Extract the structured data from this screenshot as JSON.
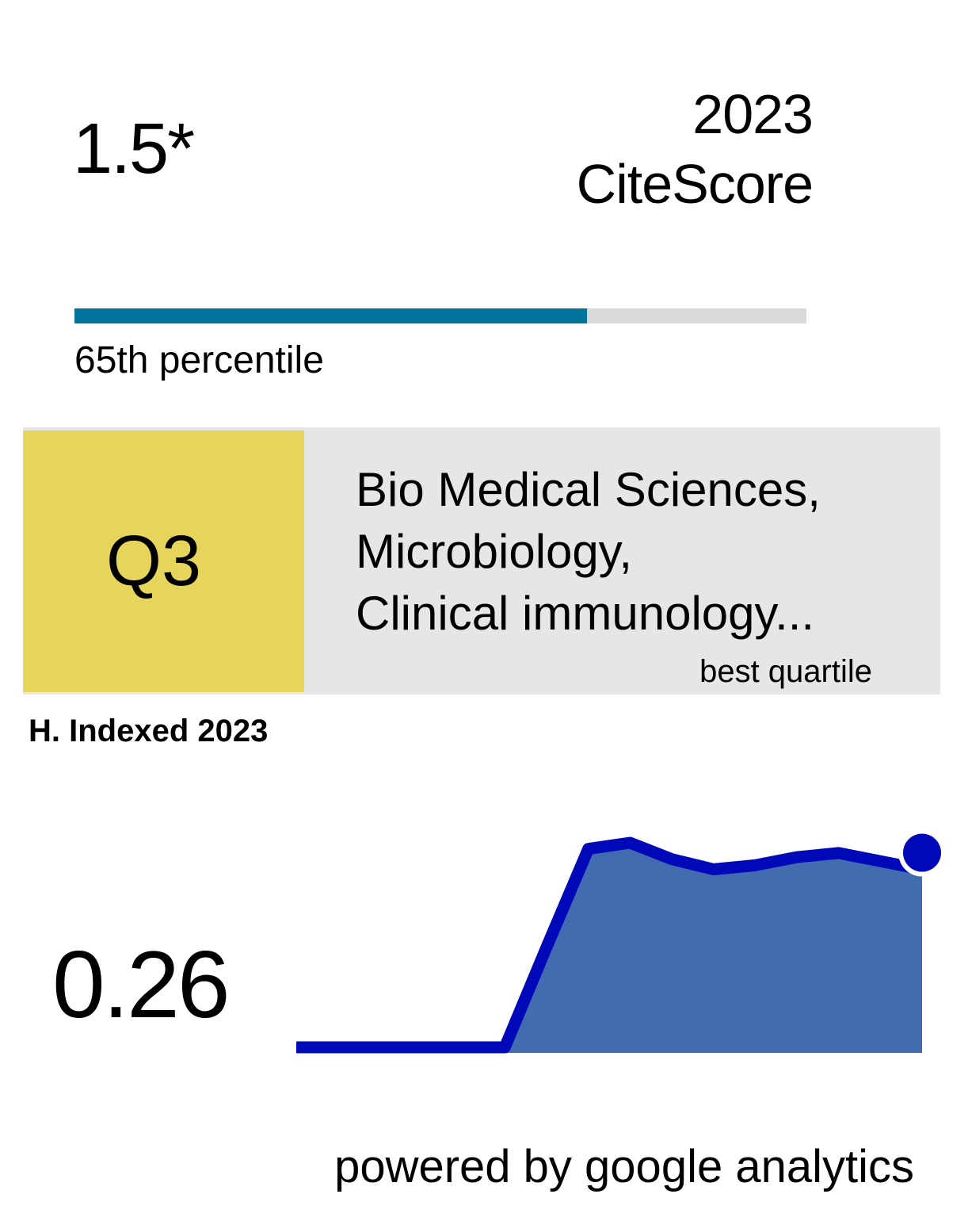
{
  "citescore": {
    "value": "1.5*",
    "year": "2023",
    "label": "CiteScore",
    "percentile_value": 0.7,
    "percentile_text": "65th percentile",
    "colors": {
      "bar_fill": "#00749c",
      "bar_track": "#d9d9d9"
    }
  },
  "quartile": {
    "label": "Q3",
    "categories": [
      "Bio Medical Sciences,",
      "Microbiology,",
      "Clinical immunology..."
    ],
    "note": "best quartile",
    "colors": {
      "box": "#e7d45b",
      "panel": "#e6e6e6"
    }
  },
  "h_index": {
    "label": "H. Indexed 2023",
    "value": "0.26",
    "sparkline": {
      "values": [
        0,
        0,
        0,
        0,
        0,
        0,
        0.49,
        0.97,
        1.0,
        0.92,
        0.87,
        0.89,
        0.93,
        0.95,
        0.91,
        0.87
      ],
      "colors": {
        "line": "#0008b8",
        "area": "#426cb0"
      }
    }
  },
  "footer": {
    "text": "powered by google analytics"
  }
}
